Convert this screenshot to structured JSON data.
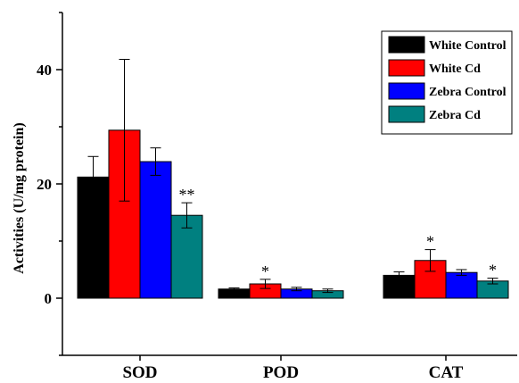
{
  "chart_data": {
    "type": "bar",
    "title": "",
    "xlabel": "",
    "ylabel": "Activities (U/mg protein)",
    "ylim": [
      -10,
      50
    ],
    "yticks": [
      0,
      20,
      40
    ],
    "grid": false,
    "legend_position": "top-right",
    "categories": [
      "SOD",
      "POD",
      "CAT"
    ],
    "series": [
      {
        "name": "White Control",
        "color": "#000000",
        "values": [
          21.2,
          1.6,
          4.0
        ],
        "errors": [
          3.6,
          0.2,
          0.6
        ],
        "significance": [
          "",
          "",
          ""
        ]
      },
      {
        "name": "White Cd",
        "color": "#ff0000",
        "values": [
          29.4,
          2.5,
          6.6
        ],
        "errors": [
          12.4,
          0.8,
          1.9
        ],
        "significance": [
          "",
          "*",
          "*"
        ]
      },
      {
        "name": "Zebra Control",
        "color": "#0000ff",
        "values": [
          23.9,
          1.6,
          4.5
        ],
        "errors": [
          2.4,
          0.3,
          0.5
        ],
        "significance": [
          "",
          "",
          ""
        ]
      },
      {
        "name": "Zebra Cd",
        "color": "#008080",
        "values": [
          14.5,
          1.3,
          3.0
        ],
        "errors": [
          2.2,
          0.3,
          0.5
        ],
        "significance": [
          "**",
          "",
          "*"
        ]
      }
    ]
  }
}
